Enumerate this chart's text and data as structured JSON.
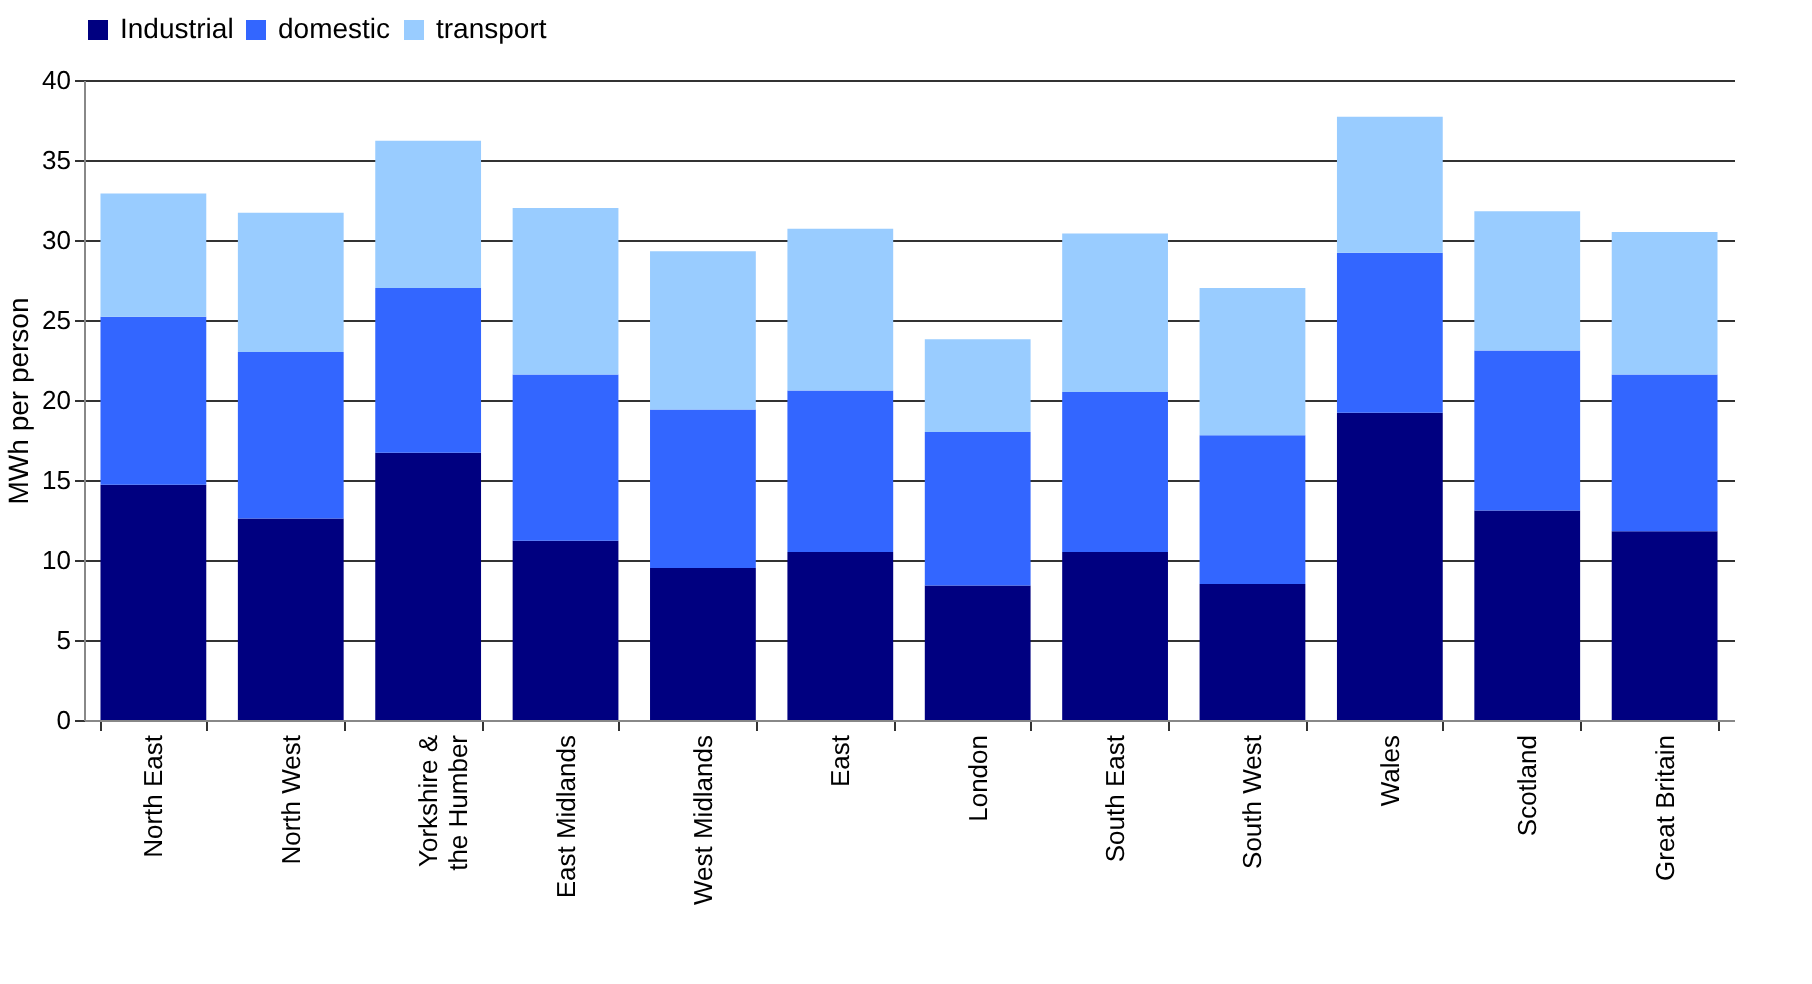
{
  "chart_data": {
    "type": "bar",
    "stacked": true,
    "ylabel": "MWh per person",
    "categories": [
      "North East",
      "North West",
      "Yorkshire & the Humber",
      "East Midlands",
      "West Midlands",
      "East",
      "London",
      "South East",
      "South West",
      "Wales",
      "Scotland",
      "Great Britain"
    ],
    "series": [
      {
        "name": "Industrial",
        "color": "#000080",
        "values": [
          14.7,
          12.6,
          16.7,
          11.2,
          9.5,
          10.5,
          8.4,
          10.5,
          8.5,
          19.2,
          13.1,
          11.8
        ]
      },
      {
        "name": "domestic",
        "color": "#3366ff",
        "values": [
          10.5,
          10.4,
          10.3,
          10.4,
          9.9,
          10.1,
          9.6,
          10.0,
          9.3,
          10.0,
          10.0,
          9.8
        ]
      },
      {
        "name": "transport",
        "color": "#99ccff",
        "values": [
          7.7,
          8.7,
          9.2,
          10.4,
          9.9,
          10.1,
          5.8,
          9.9,
          9.2,
          8.5,
          8.7,
          8.9
        ]
      }
    ],
    "ylim": [
      0,
      40
    ],
    "yticks": [
      0,
      5,
      10,
      15,
      20,
      25,
      30,
      35,
      40
    ],
    "grid": "y",
    "legend": "top"
  }
}
